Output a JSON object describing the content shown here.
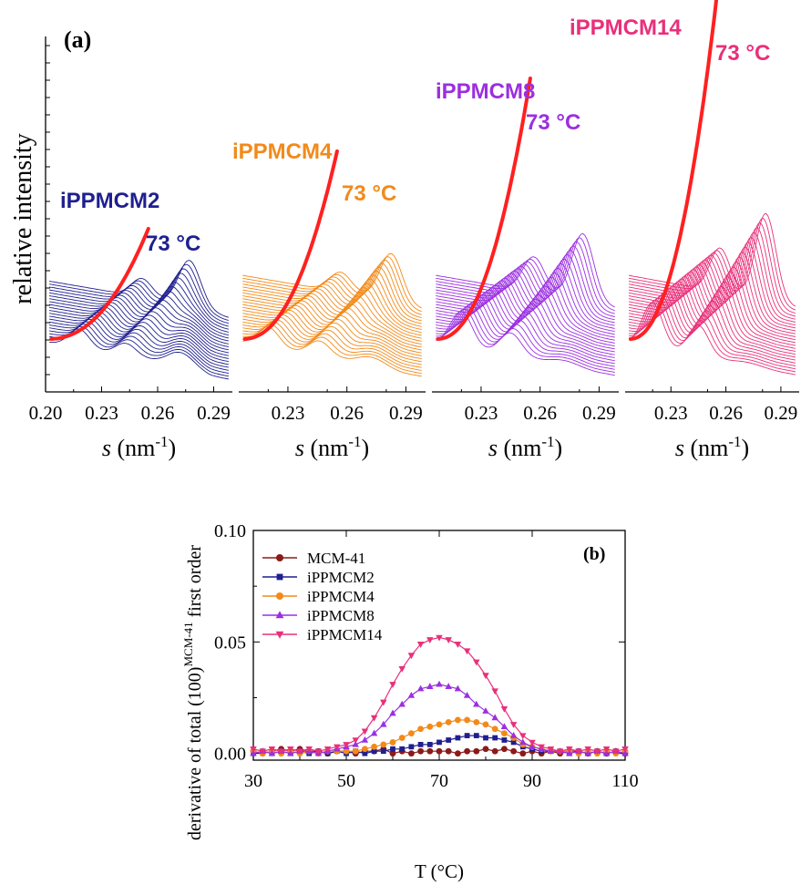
{
  "panel_a": {
    "label": "(a)",
    "ylabel": "relative intensity",
    "xlabel_italic": "s",
    "xlabel_unit": " (nm",
    "xlabel_exp": "-1",
    "xlabel_close": ")",
    "annotation": "73 °C",
    "highlight_color": "#ff2020"
  },
  "panel_b": {
    "label": "(b)",
    "ylabel_main": "derivative of total (100)",
    "ylabel_sup": "MCM-41",
    "ylabel_end": " first order",
    "xlabel": "T (°C)"
  },
  "chart_data": [
    {
      "type": "line",
      "title": "iPPMCM2",
      "color": "#1f1f8f",
      "xlabel": "s (nm-1)",
      "ylabel": "relative intensity",
      "xlim": [
        0.2,
        0.3
      ],
      "xticks": [
        "0.20",
        "0.23",
        "0.26",
        "0.29"
      ],
      "annotation": "73 °C",
      "curve_count": 22,
      "peaks": [
        {
          "s": 0.218,
          "height": 0.42
        },
        {
          "s": 0.243,
          "height": 0.79
        },
        {
          "s": 0.273,
          "height": 0.31
        }
      ],
      "baseline_drop": 0.55,
      "highlight_peak_s": 0.255
    },
    {
      "type": "line",
      "title": "iPPMCM4",
      "color": "#f28a1a",
      "xlabel": "s (nm-1)",
      "xlim": [
        0.205,
        0.3
      ],
      "xticks": [
        "0.23",
        "0.26",
        "0.29"
      ],
      "annotation": "73 °C",
      "curve_count": 24,
      "peaks": [
        {
          "s": 0.22,
          "height": 0.45
        },
        {
          "s": 0.246,
          "height": 0.95
        },
        {
          "s": 0.273,
          "height": 0.18
        }
      ],
      "baseline_drop": 0.3,
      "highlight_peak_s": 0.255
    },
    {
      "type": "line",
      "title": "iPPMCM8",
      "color": "#9b2fe0",
      "xlabel": "s (nm-1)",
      "xlim": [
        0.205,
        0.3
      ],
      "xticks": [
        "0.23",
        "0.26",
        "0.29"
      ],
      "annotation": "73 °C",
      "curve_count": 24,
      "peaks": [
        {
          "s": 0.22,
          "height": 0.8
        },
        {
          "s": 0.245,
          "height": 1.45
        },
        {
          "s": 0.273,
          "height": 0.1
        }
      ],
      "baseline_drop": 0.2,
      "highlight_peak_s": 0.255
    },
    {
      "type": "line",
      "title": "iPPMCM14",
      "color": "#e8307a",
      "xlabel": "s (nm-1)",
      "xlim": [
        0.205,
        0.3
      ],
      "xticks": [
        "0.23",
        "0.26",
        "0.29"
      ],
      "annotation": "73 °C",
      "curve_count": 24,
      "peaks": [
        {
          "s": 0.22,
          "height": 1.0
        },
        {
          "s": 0.245,
          "height": 1.95
        },
        {
          "s": 0.273,
          "height": 0.05
        }
      ],
      "baseline_drop": 0.15,
      "highlight_peak_s": 0.255
    },
    {
      "type": "line",
      "xlabel": "T (°C)",
      "ylabel": "derivative of total (100)MCM-41 first order",
      "xlim": [
        30,
        110
      ],
      "ylim": [
        -0.003,
        0.1
      ],
      "xticks": [
        "30",
        "50",
        "70",
        "90",
        "110"
      ],
      "yticks": [
        "0.00",
        "0.05",
        "0.10"
      ],
      "legend_position": "top-left",
      "series": [
        {
          "name": "MCM-41",
          "color": "#8b1a1a",
          "marker": "circle",
          "x": [
            30,
            32,
            34,
            36,
            38,
            40,
            42,
            44,
            46,
            48,
            50,
            52,
            54,
            56,
            58,
            60,
            62,
            64,
            66,
            68,
            70,
            72,
            74,
            76,
            78,
            80,
            82,
            84,
            86,
            88,
            90,
            92,
            94,
            96,
            98,
            100,
            102,
            104,
            106,
            108,
            110
          ],
          "y": [
            0.001,
            0.0,
            0.001,
            0.002,
            0.001,
            0.002,
            0.001,
            0.001,
            0.0,
            0.001,
            0.001,
            0.0,
            0.001,
            0.001,
            0.002,
            0.0,
            0.001,
            0.0,
            0.001,
            0.001,
            0.001,
            0.001,
            0.0,
            0.001,
            0.001,
            0.002,
            0.001,
            0.002,
            0.001,
            0.0,
            0.001,
            0.0,
            0.001,
            0.0,
            0.001,
            0.001,
            0.0,
            0.001,
            0.0,
            0.001,
            0.0
          ]
        },
        {
          "name": "iPPMCM2",
          "color": "#1f1f8f",
          "marker": "square",
          "x": [
            30,
            32,
            34,
            36,
            38,
            40,
            42,
            44,
            46,
            48,
            50,
            52,
            54,
            56,
            58,
            60,
            62,
            64,
            66,
            68,
            70,
            72,
            74,
            76,
            78,
            80,
            82,
            84,
            86,
            88,
            90,
            92,
            94,
            96,
            98,
            100,
            102,
            104,
            106,
            108,
            110
          ],
          "y": [
            0.0,
            0.001,
            0.0,
            0.001,
            0.0,
            0.001,
            0.0,
            0.001,
            0.0,
            0.001,
            0.0,
            0.001,
            0.0,
            0.001,
            0.001,
            0.002,
            0.002,
            0.003,
            0.004,
            0.004,
            0.005,
            0.006,
            0.007,
            0.008,
            0.008,
            0.007,
            0.007,
            0.006,
            0.005,
            0.003,
            0.002,
            0.001,
            0.001,
            0.001,
            0.0,
            0.001,
            0.0,
            0.001,
            0.0,
            0.001,
            0.0
          ]
        },
        {
          "name": "iPPMCM4",
          "color": "#f28a1a",
          "marker": "circle",
          "x": [
            30,
            32,
            34,
            36,
            38,
            40,
            42,
            44,
            46,
            48,
            50,
            52,
            54,
            56,
            58,
            60,
            62,
            64,
            66,
            68,
            70,
            72,
            74,
            76,
            78,
            80,
            82,
            84,
            86,
            88,
            90,
            92,
            94,
            96,
            98,
            100,
            102,
            104,
            106,
            108,
            110
          ],
          "y": [
            0.001,
            0.0,
            0.001,
            0.0,
            0.001,
            0.0,
            0.001,
            0.0,
            0.001,
            0.001,
            0.001,
            0.001,
            0.002,
            0.003,
            0.004,
            0.005,
            0.007,
            0.009,
            0.011,
            0.012,
            0.013,
            0.014,
            0.015,
            0.015,
            0.014,
            0.013,
            0.011,
            0.009,
            0.007,
            0.004,
            0.003,
            0.002,
            0.001,
            0.001,
            0.001,
            0.0,
            0.001,
            0.0,
            0.001,
            0.0,
            0.001
          ]
        },
        {
          "name": "iPPMCM8",
          "color": "#9b2fe0",
          "marker": "triangle-up",
          "x": [
            30,
            32,
            34,
            36,
            38,
            40,
            42,
            44,
            46,
            48,
            50,
            52,
            54,
            56,
            58,
            60,
            62,
            64,
            66,
            68,
            70,
            72,
            74,
            76,
            78,
            80,
            82,
            84,
            86,
            88,
            90,
            92,
            94,
            96,
            98,
            100,
            102,
            104,
            106,
            108,
            110
          ],
          "y": [
            0.0,
            0.001,
            0.0,
            0.001,
            0.0,
            0.001,
            0.001,
            0.0,
            0.001,
            0.002,
            0.003,
            0.004,
            0.006,
            0.009,
            0.013,
            0.018,
            0.022,
            0.026,
            0.029,
            0.03,
            0.031,
            0.03,
            0.029,
            0.026,
            0.022,
            0.019,
            0.016,
            0.012,
            0.008,
            0.005,
            0.003,
            0.002,
            0.001,
            0.001,
            0.0,
            0.001,
            0.0,
            0.001,
            0.0,
            0.001,
            0.0
          ]
        },
        {
          "name": "iPPMCM14",
          "color": "#e8307a",
          "marker": "triangle-down",
          "x": [
            30,
            32,
            34,
            36,
            38,
            40,
            42,
            44,
            46,
            48,
            50,
            52,
            54,
            56,
            58,
            60,
            62,
            64,
            66,
            68,
            70,
            72,
            74,
            76,
            78,
            80,
            82,
            84,
            86,
            88,
            90,
            92,
            94,
            96,
            98,
            100,
            102,
            104,
            106,
            108,
            110
          ],
          "y": [
            0.002,
            0.001,
            0.002,
            0.001,
            0.002,
            0.001,
            0.002,
            0.001,
            0.002,
            0.003,
            0.004,
            0.006,
            0.01,
            0.016,
            0.023,
            0.031,
            0.038,
            0.044,
            0.049,
            0.051,
            0.052,
            0.051,
            0.049,
            0.046,
            0.041,
            0.035,
            0.028,
            0.02,
            0.013,
            0.008,
            0.005,
            0.003,
            0.002,
            0.001,
            0.002,
            0.001,
            0.002,
            0.001,
            0.002,
            0.001,
            0.002
          ]
        }
      ]
    }
  ]
}
